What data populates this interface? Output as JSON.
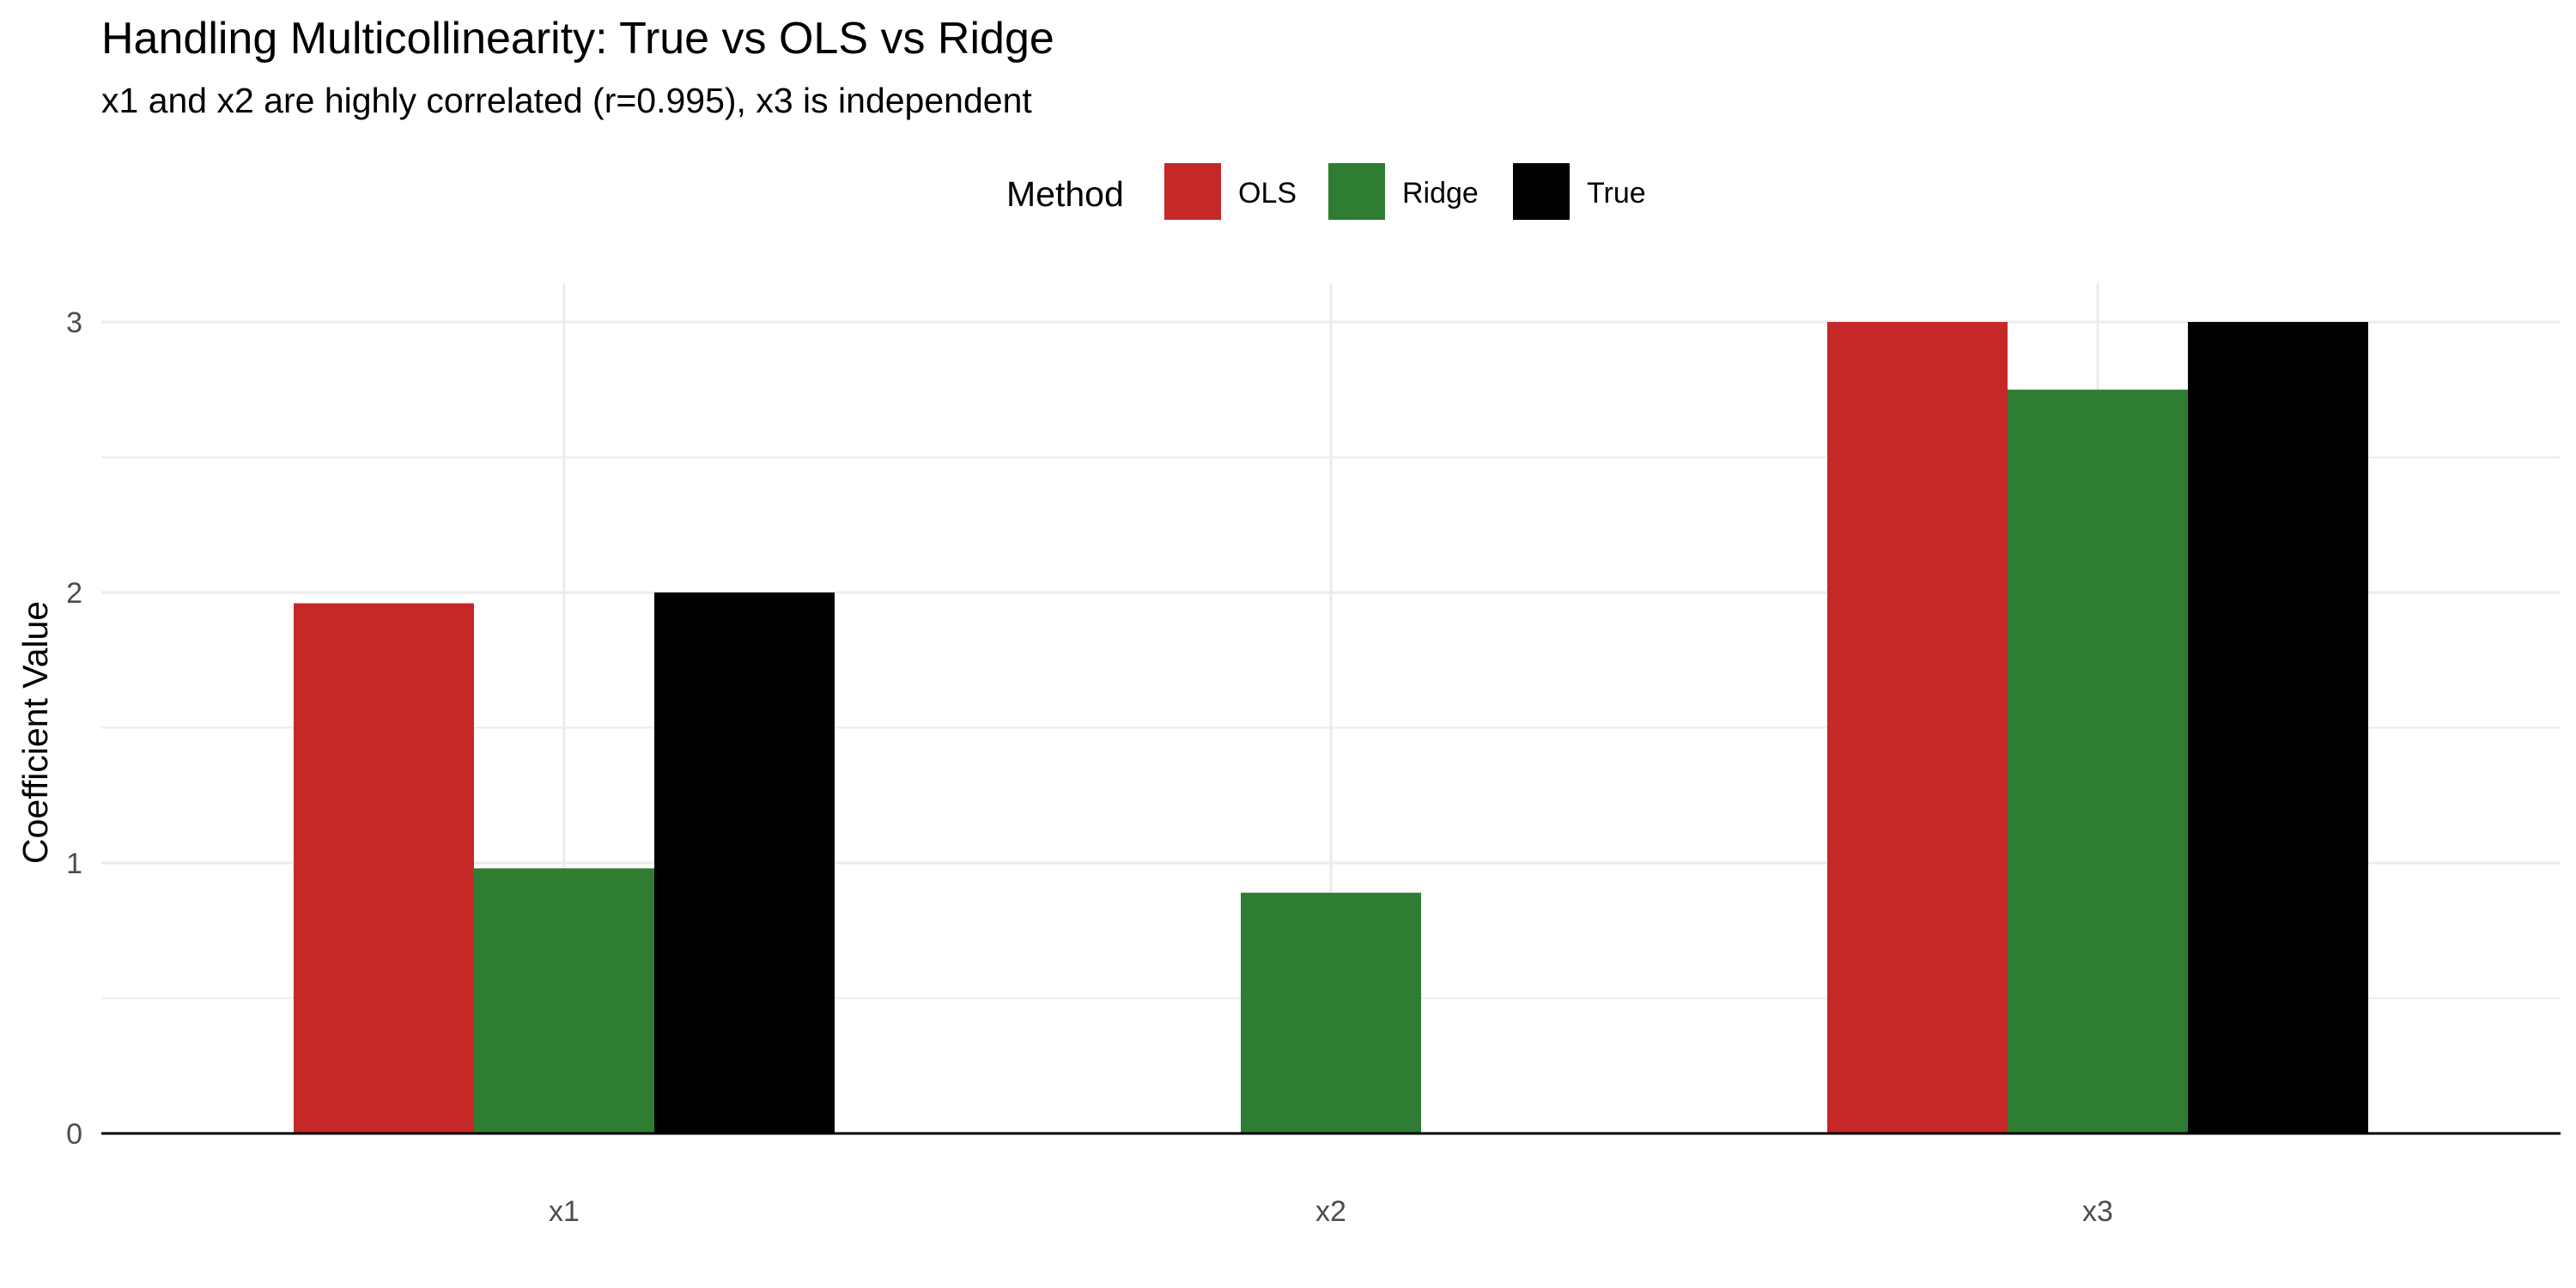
{
  "chart_data": {
    "type": "bar",
    "title": "Handling Multicollinearity: True vs OLS vs Ridge",
    "subtitle": "x1 and x2 are highly correlated (r=0.995), x3 is independent",
    "xlabel": "",
    "ylabel": "Coefficient Value",
    "categories": [
      "x1",
      "x2",
      "x3"
    ],
    "series": [
      {
        "name": "OLS",
        "color": "#C62828",
        "values": [
          1.96,
          0,
          3.0
        ]
      },
      {
        "name": "Ridge",
        "color": "#2E7D32",
        "values": [
          0.98,
          0.89,
          2.75
        ]
      },
      {
        "name": "True",
        "color": "#000000",
        "values": [
          2.0,
          0,
          3.0
        ]
      }
    ],
    "ylim": [
      0,
      3
    ],
    "yticks": [
      "0",
      "1",
      "2",
      "3"
    ],
    "grid": true,
    "legend": {
      "title": "Method",
      "position": "top"
    }
  }
}
